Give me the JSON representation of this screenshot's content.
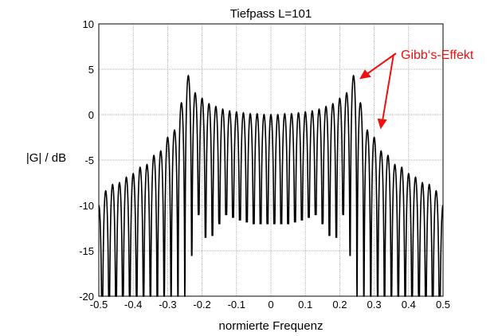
{
  "chart_data": {
    "type": "line",
    "title": "Tiefpass L=101",
    "xlabel": "normierte Frequenz",
    "ylabel": "|G| / dB",
    "xlim": [
      -0.5,
      0.5
    ],
    "ylim": [
      -20,
      10
    ],
    "xticks": [
      "-0.5",
      "-0.4",
      "-0.3",
      "-0.2",
      "-0.1",
      "0",
      "0.1",
      "0.2",
      "0.3",
      "0.4",
      "0.5"
    ],
    "yticks": [
      "10",
      "5",
      "0",
      "-5",
      "-10",
      "-15",
      "-20"
    ],
    "grid": true,
    "line_color": "#000000",
    "lobe_spacing": 0.02,
    "peak_db": [
      -10,
      -8.4,
      -7.7,
      -7.5,
      -6.9,
      -6.5,
      -5.8,
      -5.5,
      -4.5,
      -4,
      -2.5,
      -1.7,
      1.3,
      4.3,
      2.4,
      1.8,
      1.2,
      0.9,
      0.6,
      0.4,
      0.3,
      0.2,
      0.1,
      0.1,
      0,
      0,
      0,
      0.1,
      0.1,
      0.2,
      0.3,
      0.4,
      0.6,
      0.9,
      1.2,
      1.8,
      2.4,
      4.3,
      1.3,
      -1.7,
      -2.5,
      -4,
      -4.5,
      -5.5,
      -5.8,
      -6.5,
      -6.9,
      -7.5,
      -7.7,
      -8.4,
      -10
    ],
    "trough_db": [
      -20,
      -20,
      -20,
      -20,
      -20,
      -20,
      -20,
      -20,
      -20,
      -20,
      -20,
      -20,
      -20,
      -15.5,
      -11,
      -13.5,
      -13.3,
      -12,
      -11,
      -11.3,
      -11.6,
      -11.8,
      -12,
      -12,
      -12,
      -12,
      -12,
      -12,
      -11.8,
      -11.6,
      -11.3,
      -11,
      -12,
      -13.3,
      -13.5,
      -11,
      -15.5,
      -20,
      -20,
      -20,
      -20,
      -20,
      -20,
      -20,
      -20,
      -20,
      -20,
      -20,
      -20,
      -20
    ],
    "annotation": {
      "text": "Gibb‘s-Effekt",
      "color": "#ee1111"
    }
  }
}
